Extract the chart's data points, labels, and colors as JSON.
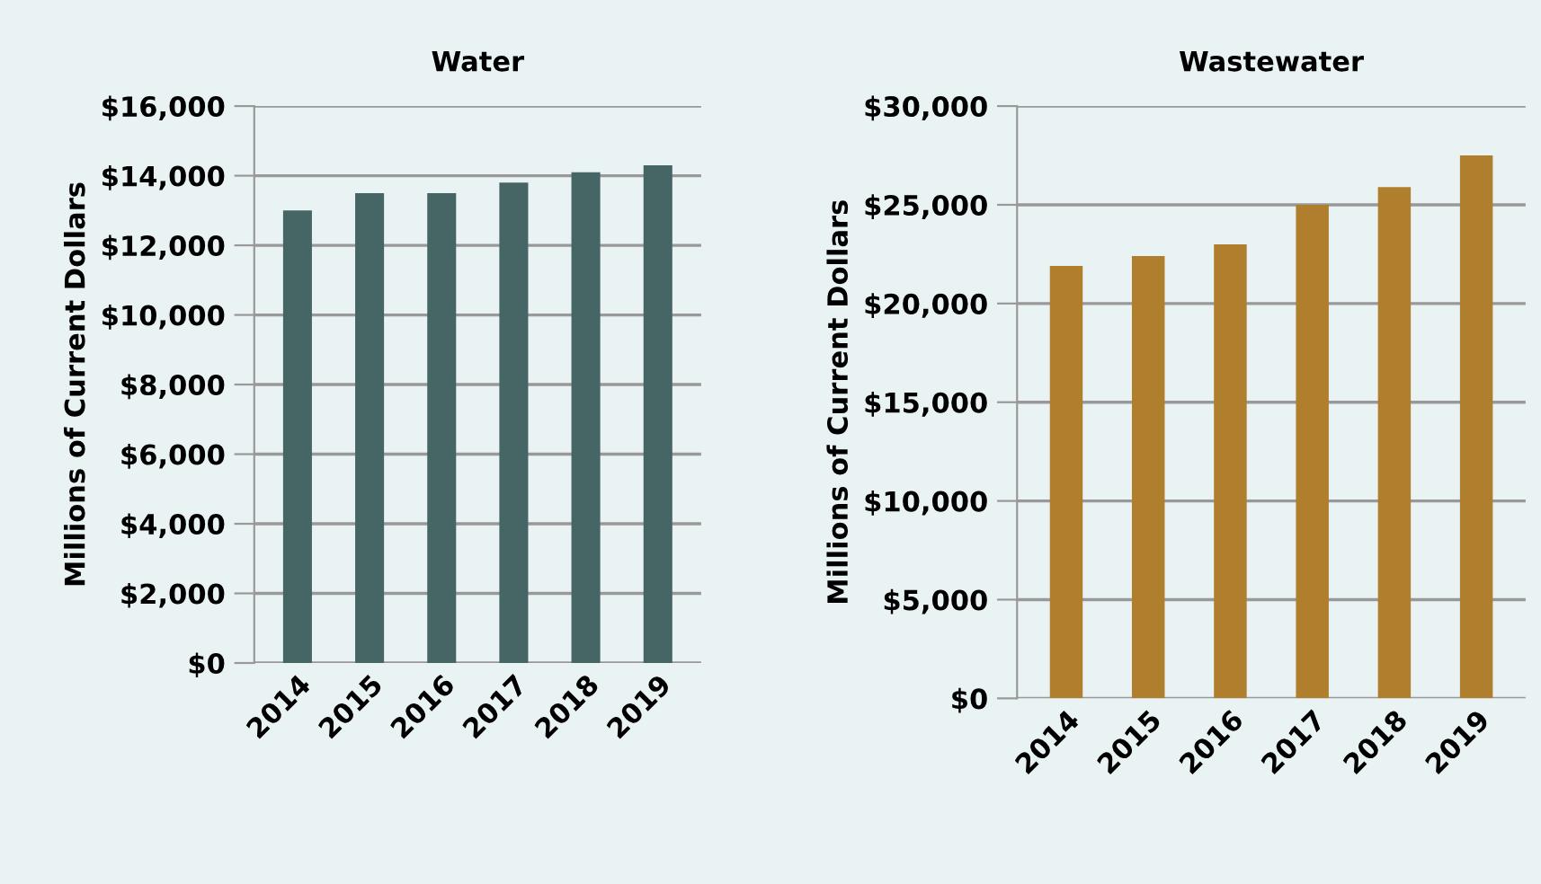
{
  "chart_data": [
    {
      "type": "bar",
      "title": "Water",
      "ylabel": "Millions of Current Dollars",
      "categories": [
        "2014",
        "2015",
        "2016",
        "2017",
        "2018",
        "2019"
      ],
      "values": [
        13000,
        13500,
        13500,
        13800,
        14100,
        14300
      ],
      "color": "#466666",
      "ylim": [
        0,
        16000
      ],
      "yticks": [
        {
          "value": 0,
          "label": "$0"
        },
        {
          "value": 2000,
          "label": "$2,000"
        },
        {
          "value": 4000,
          "label": "$4,000"
        },
        {
          "value": 6000,
          "label": "$6,000"
        },
        {
          "value": 8000,
          "label": "$8,000"
        },
        {
          "value": 10000,
          "label": "$10,000"
        },
        {
          "value": 12000,
          "label": "$12,000"
        },
        {
          "value": 14000,
          "label": "$14,000"
        },
        {
          "value": 16000,
          "label": "$16,000"
        }
      ],
      "grid": "y"
    },
    {
      "type": "bar",
      "title": "Wastewater",
      "ylabel": "Millions of Current Dollars",
      "categories": [
        "2014",
        "2015",
        "2016",
        "2017",
        "2018",
        "2019"
      ],
      "values": [
        21900,
        22400,
        23000,
        25000,
        25900,
        27500
      ],
      "color": "#b07f2e",
      "ylim": [
        0,
        30000
      ],
      "yticks": [
        {
          "value": 0,
          "label": "$0"
        },
        {
          "value": 5000,
          "label": "$5,000"
        },
        {
          "value": 10000,
          "label": "$10,000"
        },
        {
          "value": 15000,
          "label": "$15,000"
        },
        {
          "value": 20000,
          "label": "$20,000"
        },
        {
          "value": 25000,
          "label": "$25,000"
        },
        {
          "value": 30000,
          "label": "$30,000"
        }
      ],
      "grid": "y"
    }
  ]
}
